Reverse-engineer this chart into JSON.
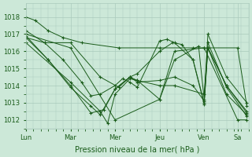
{
  "bg_color": "#cce8d8",
  "grid_color": "#aacabc",
  "line_color": "#1a5c1a",
  "xlabel": "Pression niveau de la mer( hPa )",
  "xlabel_fontsize": 7,
  "tick_fontsize": 6,
  "ylim": [
    1011.5,
    1018.8
  ],
  "yticks": [
    1012,
    1013,
    1014,
    1015,
    1016,
    1017,
    1018
  ],
  "day_labels": [
    "Lun",
    "Mar",
    "Mer",
    "Jeu",
    "Ven",
    "Sa"
  ],
  "day_positions": [
    0,
    24,
    48,
    72,
    96,
    114
  ],
  "xlim": [
    0,
    120
  ],
  "lines": [
    {
      "pts": [
        [
          0,
          1018.0
        ],
        [
          5,
          1017.8
        ],
        [
          12,
          1017.2
        ],
        [
          20,
          1016.8
        ],
        [
          30,
          1016.5
        ],
        [
          50,
          1016.2
        ],
        [
          72,
          1016.2
        ],
        [
          90,
          1016.2
        ],
        [
          96,
          1016.2
        ],
        [
          114,
          1016.2
        ],
        [
          119,
          1012.8
        ]
      ]
    },
    {
      "pts": [
        [
          0,
          1017.2
        ],
        [
          10,
          1016.5
        ],
        [
          20,
          1015.5
        ],
        [
          30,
          1014.2
        ],
        [
          35,
          1013.4
        ],
        [
          40,
          1013.5
        ],
        [
          48,
          1014.0
        ],
        [
          52,
          1014.4
        ],
        [
          56,
          1014.2
        ],
        [
          60,
          1013.9
        ],
        [
          72,
          1016.6
        ],
        [
          76,
          1016.7
        ],
        [
          80,
          1016.5
        ],
        [
          90,
          1015.5
        ],
        [
          96,
          1013.0
        ],
        [
          98,
          1016.2
        ],
        [
          108,
          1014.0
        ],
        [
          119,
          1012.4
        ]
      ]
    },
    {
      "pts": [
        [
          0,
          1017.0
        ],
        [
          24,
          1016.2
        ],
        [
          48,
          1012.0
        ],
        [
          72,
          1013.2
        ],
        [
          80,
          1016.0
        ],
        [
          96,
          1016.2
        ],
        [
          114,
          1012.0
        ],
        [
          119,
          1012.0
        ]
      ]
    },
    {
      "pts": [
        [
          0,
          1016.8
        ],
        [
          12,
          1015.5
        ],
        [
          24,
          1013.9
        ],
        [
          35,
          1012.8
        ],
        [
          40,
          1012.3
        ],
        [
          48,
          1013.8
        ],
        [
          56,
          1014.5
        ],
        [
          60,
          1014.3
        ],
        [
          72,
          1014.0
        ],
        [
          80,
          1014.0
        ],
        [
          96,
          1013.5
        ],
        [
          98,
          1016.2
        ],
        [
          108,
          1014.0
        ],
        [
          119,
          1012.5
        ]
      ]
    },
    {
      "pts": [
        [
          0,
          1016.5
        ],
        [
          24,
          1014.2
        ],
        [
          40,
          1012.5
        ],
        [
          44,
          1011.8
        ],
        [
          48,
          1013.5
        ],
        [
          56,
          1014.4
        ],
        [
          60,
          1014.3
        ],
        [
          72,
          1013.2
        ],
        [
          80,
          1015.5
        ],
        [
          93,
          1016.3
        ],
        [
          96,
          1013.2
        ],
        [
          98,
          1017.0
        ],
        [
          108,
          1014.5
        ],
        [
          119,
          1013.0
        ]
      ]
    },
    {
      "pts": [
        [
          0,
          1016.8
        ],
        [
          10,
          1016.5
        ],
        [
          24,
          1016.5
        ],
        [
          40,
          1014.5
        ],
        [
          50,
          1013.9
        ],
        [
          56,
          1014.5
        ],
        [
          60,
          1014.2
        ],
        [
          72,
          1014.3
        ],
        [
          80,
          1014.5
        ],
        [
          90,
          1014.0
        ],
        [
          96,
          1013.1
        ],
        [
          98,
          1016.5
        ],
        [
          108,
          1013.9
        ],
        [
          119,
          1012.2
        ]
      ]
    },
    {
      "pts": [
        [
          0,
          1016.9
        ],
        [
          12,
          1015.5
        ],
        [
          24,
          1014.0
        ],
        [
          35,
          1012.4
        ],
        [
          42,
          1012.6
        ],
        [
          48,
          1013.8
        ],
        [
          56,
          1014.5
        ],
        [
          60,
          1014.7
        ],
        [
          72,
          1016.0
        ],
        [
          79,
          1016.5
        ],
        [
          84,
          1016.4
        ],
        [
          90,
          1015.5
        ],
        [
          96,
          1012.9
        ],
        [
          98,
          1016.2
        ],
        [
          108,
          1013.5
        ],
        [
          119,
          1012.3
        ]
      ]
    }
  ]
}
